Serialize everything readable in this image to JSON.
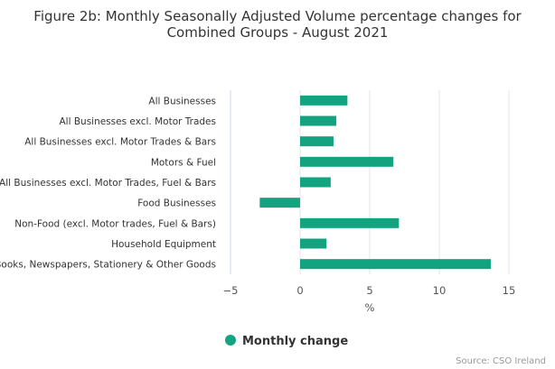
{
  "title_line1": "Figure 2b: Monthly Seasonally Adjusted Volume percentage changes for",
  "title_line2": "Combined Groups - August 2021",
  "credit": "Source: CSO Ireland",
  "colors": {
    "bar": "#13a37f",
    "grid": "#e6e6e6",
    "axis": "#ccd6eb"
  },
  "chart_data": {
    "type": "bar",
    "orientation": "horizontal",
    "categories": [
      "All Businesses",
      "All Businesses excl. Motor Trades",
      "All Businesses excl. Motor Trades & Bars",
      "Motors & Fuel",
      "All Businesses excl. Motor Trades, Fuel & Bars",
      "Food Businesses",
      "Non-Food (excl. Motor trades, Fuel & Bars)",
      "Household Equipment",
      "Books, Newspapers, Stationery & Other Goods"
    ],
    "series": [
      {
        "name": "Monthly change",
        "values": [
          3.4,
          2.6,
          2.4,
          6.7,
          2.2,
          -2.9,
          7.1,
          1.9,
          13.7
        ]
      }
    ],
    "xlim": [
      -5,
      15
    ],
    "xticks": [
      -5,
      0,
      5,
      10,
      15
    ],
    "xtick_labels": [
      "−5",
      "0",
      "5",
      "10",
      "15"
    ],
    "xlabel": "%",
    "grid": true,
    "legend": "bottom-center"
  }
}
